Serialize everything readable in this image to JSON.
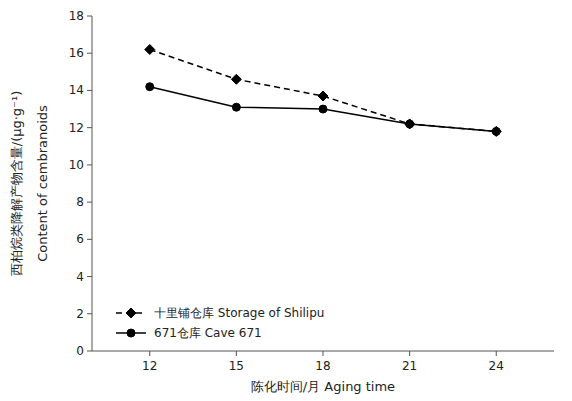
{
  "chart_data": {
    "type": "line",
    "x_label": "陈化时间/月 Aging time",
    "y_label": [
      "西柏烷类降解产物含量/(μg·g⁻¹)",
      "Content of cembranoids"
    ],
    "x": [
      12,
      15,
      18,
      21,
      24
    ],
    "series": [
      {
        "name": "十里铺仓库 Storage of Shilipu",
        "color": "#000000",
        "marker": "diamond",
        "line_style": "dashed",
        "values": [
          16.2,
          14.6,
          13.7,
          12.2,
          11.8
        ]
      },
      {
        "name": "671仓库 Cave 671",
        "color": "#000000",
        "marker": "circle",
        "line_style": "solid",
        "values": [
          14.2,
          13.1,
          13.0,
          12.2,
          11.8
        ]
      }
    ],
    "xlim": [
      10,
      26
    ],
    "ylim": [
      0,
      18
    ],
    "xticks": [
      12,
      15,
      18,
      21,
      24
    ],
    "yticks": [
      0,
      2,
      4,
      6,
      8,
      10,
      12,
      14,
      16,
      18
    ],
    "grid": false,
    "legend": "lower left"
  }
}
